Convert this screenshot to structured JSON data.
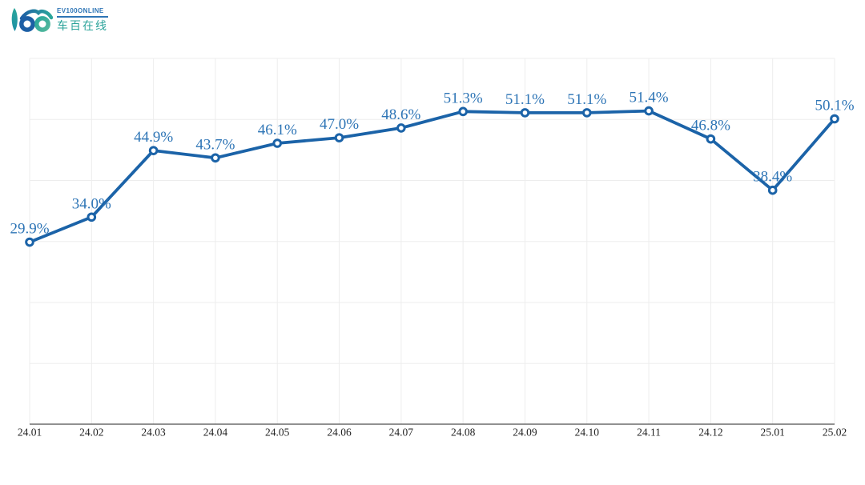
{
  "page": {
    "background": "#ffffff"
  },
  "header": {
    "brand_en": "EV100ONLINE",
    "brand_cn": "车百在线",
    "brand_en_color": "#2e75b6",
    "brand_cn_color": "#2ba39a",
    "logo_mark_icon": "ev100-car-wheels-logo",
    "logo_colors": {
      "blue": "#1d5fa5",
      "teal": "#2aa79b",
      "green": "#52b79c"
    }
  },
  "chart_data": {
    "type": "line",
    "title": "",
    "xlabel": "",
    "ylabel": "",
    "categories": [
      "24.01",
      "24.02",
      "24.03",
      "24.04",
      "24.05",
      "24.06",
      "24.07",
      "24.08",
      "24.09",
      "24.10",
      "24.11",
      "24.12",
      "25.01",
      "25.02"
    ],
    "values": [
      29.9,
      34.0,
      44.9,
      43.7,
      46.1,
      47.0,
      48.6,
      51.3,
      51.1,
      51.1,
      51.4,
      46.8,
      38.4,
      50.1
    ],
    "point_labels": [
      "29.9%",
      "34.0%",
      "44.9%",
      "43.7%",
      "46.1%",
      "47.0%",
      "48.6%",
      "51.3%",
      "51.1%",
      "51.1%",
      "51.4%",
      "46.8%",
      "38.4%",
      "50.1%"
    ],
    "ylim": [
      0,
      60
    ],
    "y_grid_step": 10,
    "grid": "both",
    "y_tick_labels_shown": false,
    "legend": "none",
    "line_color": "#1b63a8",
    "marker_style": "open-circle",
    "marker_fill": "#ffffff",
    "point_label_color": "#2e75b6",
    "grid_color": "#ededed",
    "axis_color": "#4f4f4f",
    "tick_label_color": "#222222"
  }
}
